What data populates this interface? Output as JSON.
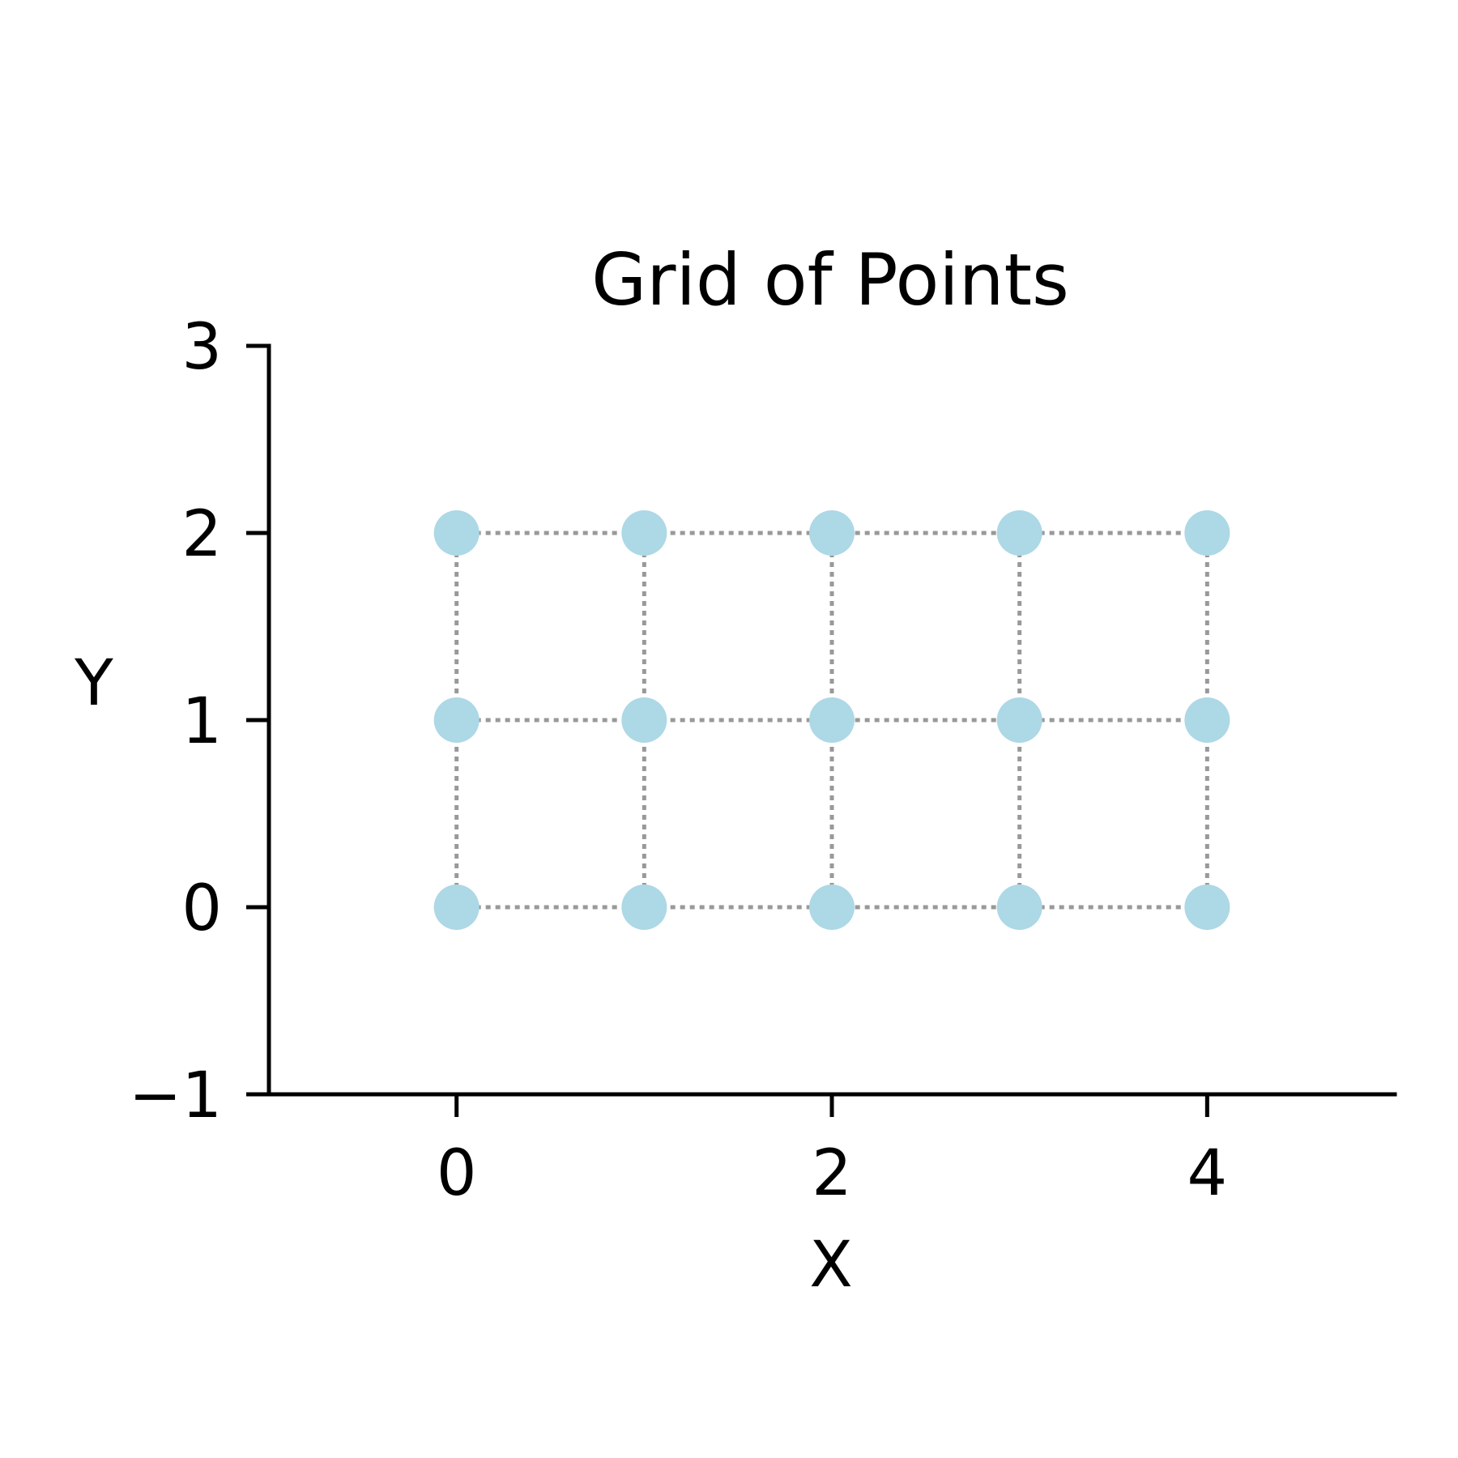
{
  "chart_data": {
    "type": "scatter",
    "title": "Grid of Points",
    "xlabel": "X",
    "ylabel": "Y",
    "xlim": [
      -1,
      5
    ],
    "ylim": [
      -1,
      3
    ],
    "xticks": [
      0,
      2,
      4
    ],
    "yticks": [
      -1,
      0,
      1,
      2,
      3
    ],
    "xtick_labels": [
      "0",
      "2",
      "4"
    ],
    "ytick_labels": [
      "−1",
      "0",
      "1",
      "2",
      "3"
    ],
    "grid": false,
    "spines": [
      "left",
      "bottom"
    ],
    "connectors": {
      "style": "dotted",
      "color": "#999999",
      "pattern": "rows-and-columns"
    },
    "points": {
      "color": "#add8e6",
      "x": [
        0,
        1,
        2,
        3,
        4,
        0,
        1,
        2,
        3,
        4,
        0,
        1,
        2,
        3,
        4
      ],
      "y": [
        0,
        0,
        0,
        0,
        0,
        1,
        1,
        1,
        1,
        1,
        2,
        2,
        2,
        2,
        2
      ]
    }
  }
}
